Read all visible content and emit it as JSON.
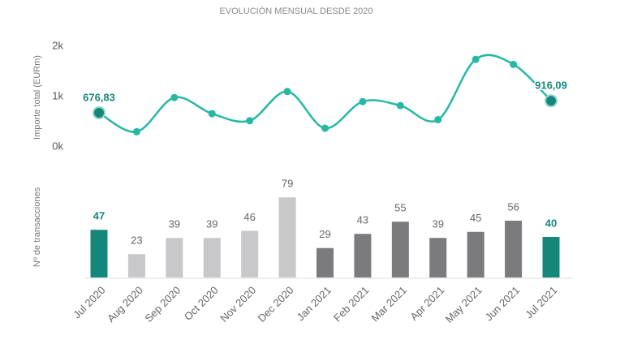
{
  "chart_data": [
    {
      "type": "line",
      "title": "EVOLUCIÓN MENSUAL DESDE 2020",
      "y_label": "Importe total (EURm)",
      "values": [
        676.83,
        300,
        980,
        660,
        520,
        1100,
        370,
        900,
        820,
        540,
        1740,
        1640,
        916.09
      ],
      "value_labels": [
        "676,83",
        null,
        null,
        null,
        null,
        null,
        null,
        null,
        null,
        null,
        null,
        null,
        "916,09"
      ],
      "color": "#25b8a3",
      "highlight_color": "#15877a",
      "ylim": [
        0,
        2000
      ],
      "yticks": [
        {
          "value": 0,
          "label": "0k"
        },
        {
          "value": 1000,
          "label": "1k"
        },
        {
          "value": 2000,
          "label": "2k"
        }
      ]
    },
    {
      "type": "bar",
      "y_label": "Nº de transacciones",
      "categories": [
        "Jul 2020",
        "Aug 2020",
        "Sep 2020",
        "Oct 2020",
        "Nov 2020",
        "Dec 2020",
        "Jan 2021",
        "Feb 2021",
        "Mar 2021",
        "Apr 2021",
        "May 2021",
        "Jun 2021",
        "Jul 2021"
      ],
      "values": [
        47,
        23,
        39,
        39,
        46,
        79,
        29,
        43,
        55,
        39,
        45,
        56,
        40
      ],
      "colors": [
        "#15877a",
        "#c8c8ca",
        "#c8c8ca",
        "#c8c8ca",
        "#c8c8ca",
        "#c8c8ca",
        "#7b7b7e",
        "#7b7b7e",
        "#7b7b7e",
        "#7b7b7e",
        "#7b7b7e",
        "#7b7b7e",
        "#15877a"
      ]
    }
  ]
}
